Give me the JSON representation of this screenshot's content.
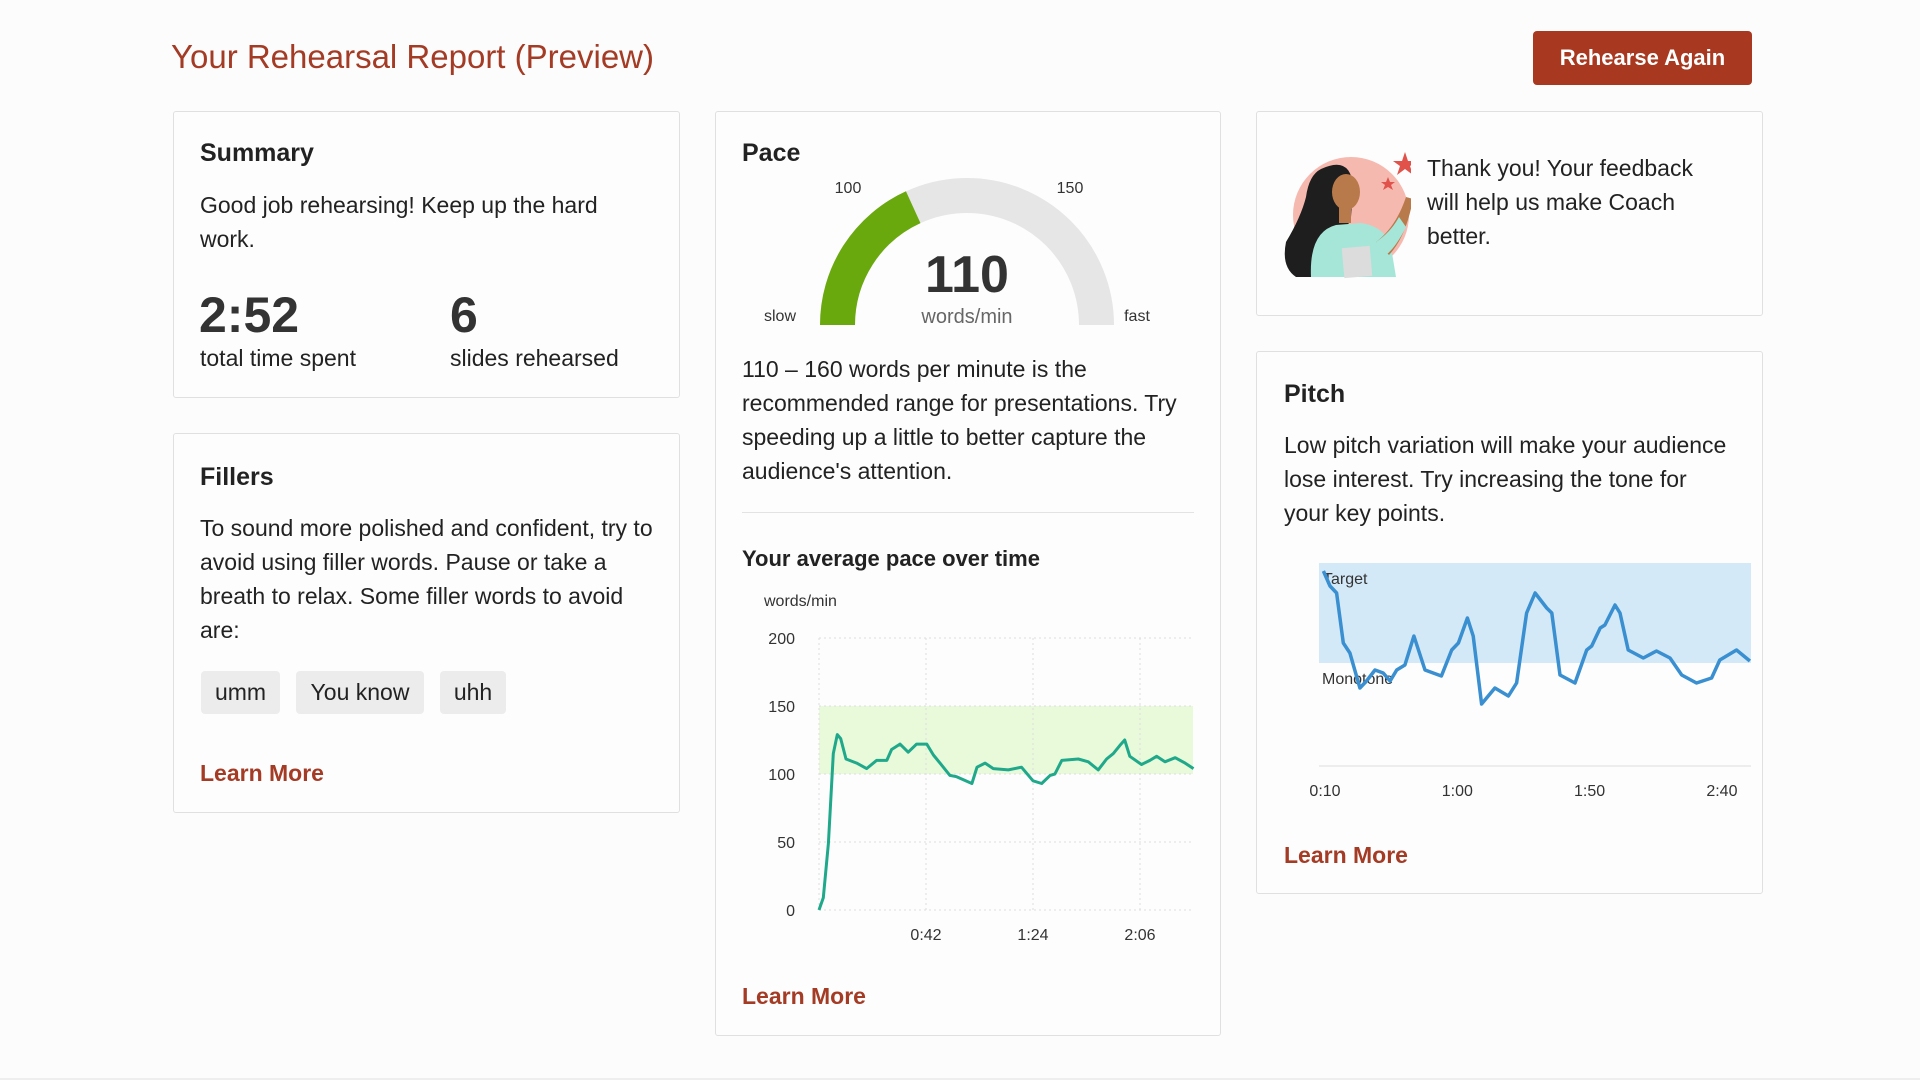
{
  "header": {
    "title": "Your Rehearsal Report (Preview)",
    "rehearse_again_label": "Rehearse Again"
  },
  "colors": {
    "accent": "#a33b25",
    "button": "#a8381f",
    "gauge_fill": "#6aa90e",
    "gauge_track": "#e6e6e6",
    "pace_line": "#1fa88a",
    "pace_band": "#e9fadb",
    "pitch_line": "#3a8fd0",
    "pitch_band": "#d4e9f8"
  },
  "summary": {
    "title": "Summary",
    "message": "Good job rehearsing! Keep up the hard work.",
    "total_time": "2:52",
    "total_time_label": "total time spent",
    "slides": "6",
    "slides_label": "slides rehearsed"
  },
  "fillers": {
    "title": "Fillers",
    "message": "To sound more polished and confident, try to avoid using filler words. Pause or take a breath to relax. Some filler words to avoid are:",
    "words": [
      "umm",
      "You know",
      "uhh"
    ],
    "learn_more": "Learn More"
  },
  "pace": {
    "title": "Pace",
    "gauge": {
      "value": 110,
      "value_text": "110",
      "unit": "words/min",
      "min": 70,
      "max": 180,
      "label_100": "100",
      "label_150": "150",
      "slow": "slow",
      "fast": "fast"
    },
    "message": "110 – 160 words per minute is the recommended range for presentations. Try speeding up a little to better capture the audience's attention.",
    "chart_title": "Your average pace over time",
    "learn_more": "Learn More"
  },
  "feedback": {
    "icon": "woman-with-stars-illustration",
    "message": "Thank you! Your feedback will help us make Coach better."
  },
  "pitch": {
    "title": "Pitch",
    "message": "Low pitch variation will make your audience lose interest. Try increasing the tone for your key points.",
    "learn_more": "Learn More"
  },
  "chart_data": [
    {
      "type": "line",
      "title": "Your average pace over time",
      "ylabel": "words/min",
      "ylim": [
        0,
        200
      ],
      "yticks": [
        "0",
        "50",
        "100",
        "150",
        "200"
      ],
      "xticks": [
        "0:42",
        "1:24",
        "2:06"
      ],
      "grid": true,
      "band": {
        "from": 100,
        "to": 150
      },
      "x_seconds": [
        0,
        1.7,
        3.7,
        5.6,
        7.2,
        8.5,
        10.6,
        14.8,
        18.7,
        22.6,
        26.6,
        28.5,
        31.8,
        35,
        38.3,
        42.3,
        44.9,
        47.5,
        51.4,
        54,
        60,
        62,
        65.2,
        68.4,
        74.3,
        79.5,
        84,
        87.4,
        90.7,
        92.6,
        95.3,
        101.8,
        105.7,
        109.6,
        112.9,
        115.5,
        118.1,
        120,
        122,
        126.6,
        129.9,
        132.5,
        135.8,
        139.8,
        143.7,
        147
      ],
      "values": [
        0,
        9,
        49,
        115,
        129,
        126,
        111,
        108,
        104,
        110,
        110,
        118,
        122,
        116,
        122,
        122,
        114,
        108,
        99,
        98,
        93,
        105,
        108,
        104,
        103,
        105,
        95,
        93,
        99,
        100,
        110,
        111,
        109,
        103,
        111,
        115,
        121,
        125,
        113,
        107,
        110,
        113,
        109,
        112,
        108,
        104
      ]
    },
    {
      "type": "line",
      "xticks": [
        "0:10",
        "1:00",
        "1:50",
        "2:40"
      ],
      "band_labels": {
        "top": "Target",
        "bottom": "Monotone"
      },
      "x_seconds": [
        9.4,
        11.9,
        14.4,
        16.9,
        19.4,
        23.2,
        25.7,
        28.9,
        32,
        34.6,
        37.1,
        40.2,
        43.6,
        47.8,
        54,
        57.9,
        60.4,
        63.8,
        66,
        69.2,
        74.2,
        79.3,
        82.4,
        86.2,
        89.4,
        93.8,
        95.7,
        98.8,
        104.5,
        108.9,
        110.8,
        114,
        115.8,
        119.6,
        121.5,
        124.6,
        130.3,
        135.3,
        140.4,
        144.8,
        150.4,
        156.1,
        159.2,
        165.5,
        170.6
      ],
      "values": [
        0.92,
        0.77,
        0.7,
        0.2,
        0.1,
        -0.25,
        -0.18,
        -0.07,
        -0.1,
        -0.18,
        -0.07,
        -0.02,
        0.27,
        -0.07,
        -0.13,
        0.13,
        0.2,
        0.45,
        0.27,
        -0.41,
        -0.25,
        -0.33,
        -0.2,
        0.5,
        0.7,
        0.55,
        0.5,
        -0.12,
        -0.2,
        0.13,
        0.17,
        0.35,
        0.38,
        0.58,
        0.5,
        0.13,
        0.05,
        0.12,
        0.05,
        -0.12,
        -0.2,
        -0.15,
        0.03,
        0.13,
        0.02
      ]
    }
  ]
}
